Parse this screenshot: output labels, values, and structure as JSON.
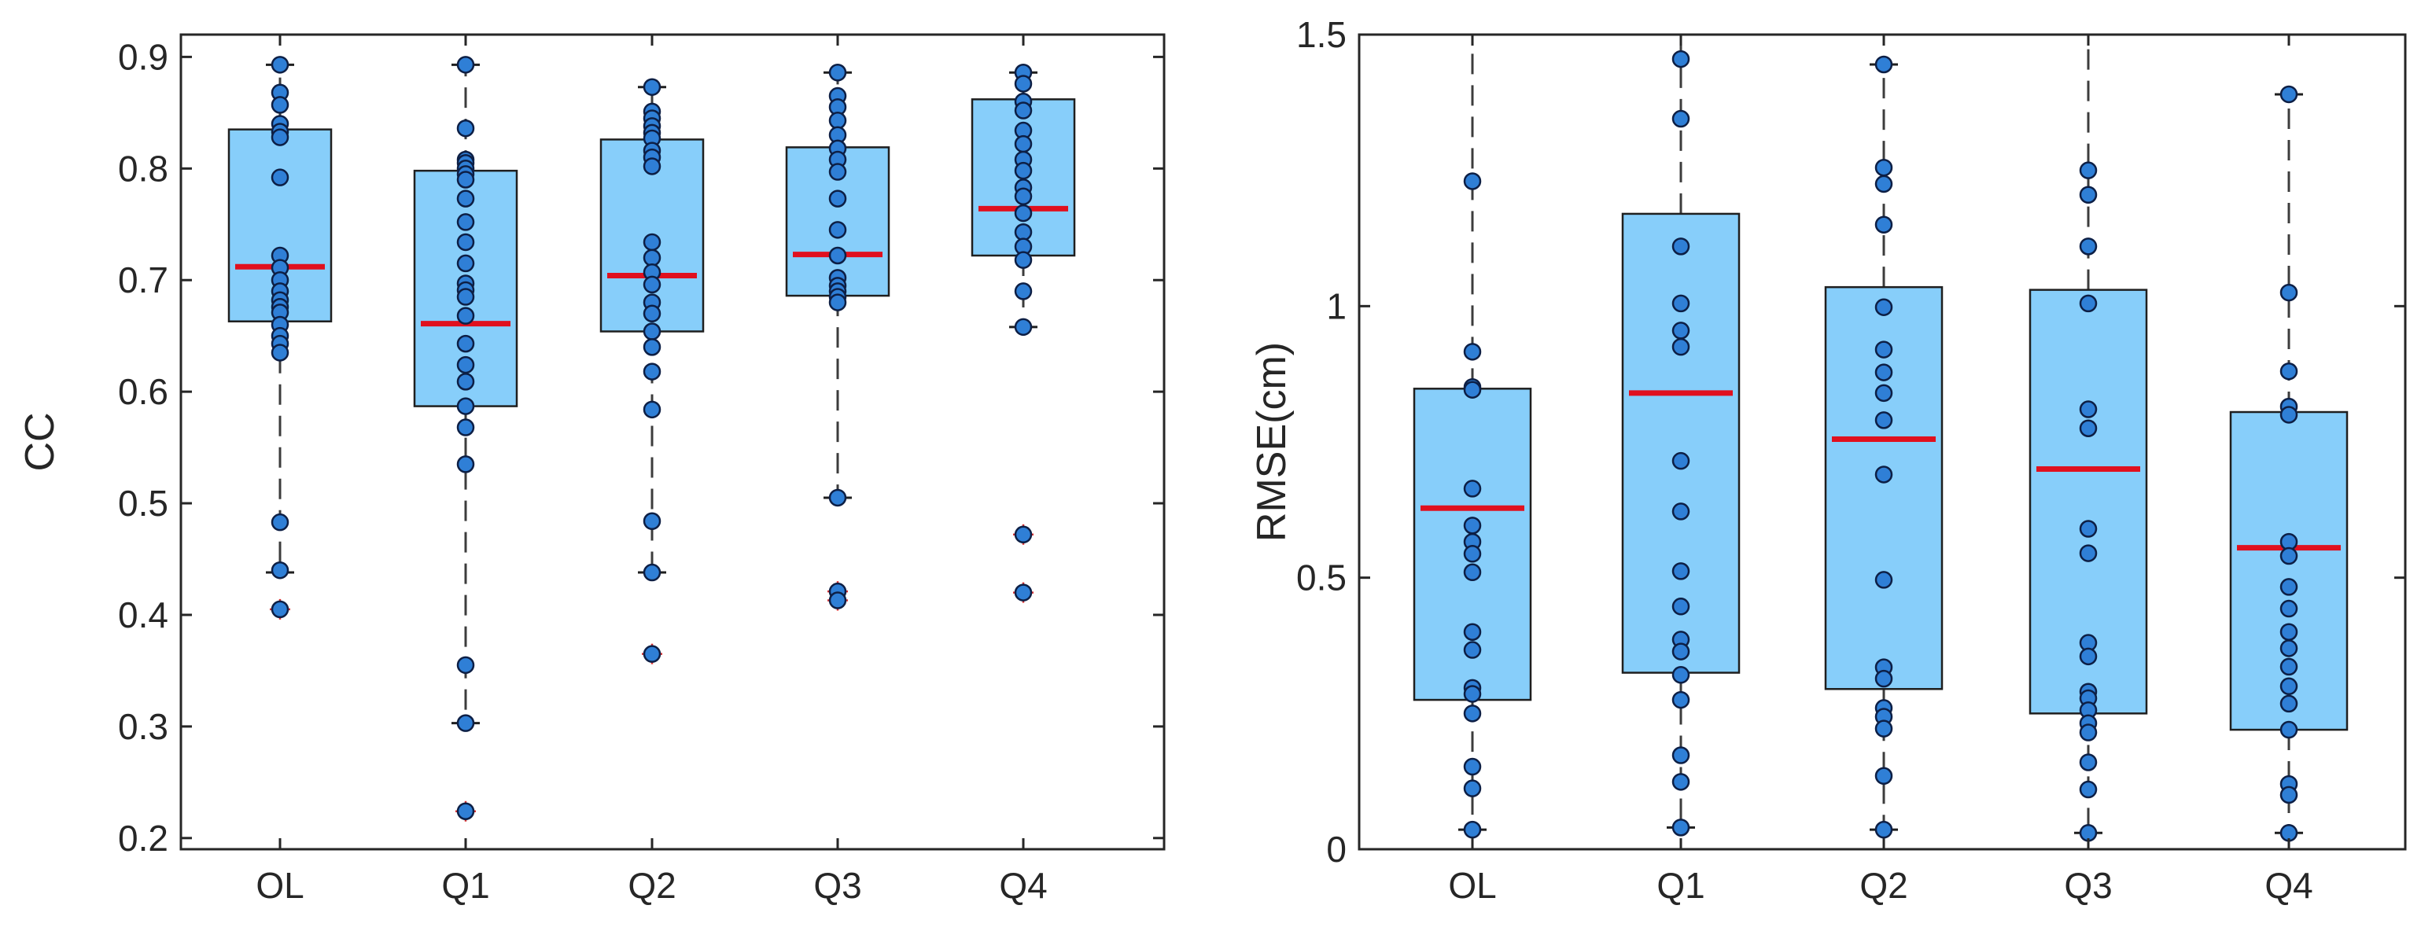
{
  "chart_data": [
    {
      "type": "box",
      "id": "cc",
      "ylabel": "CC",
      "xlabel": "",
      "ylim": [
        0.19,
        0.92
      ],
      "yticks": [
        0.2,
        0.3,
        0.4,
        0.5,
        0.6,
        0.7,
        0.8,
        0.9
      ],
      "ytick_labels": [
        "0.2",
        "0.3",
        "0.4",
        "0.5",
        "0.6",
        "0.7",
        "0.8",
        "0.9"
      ],
      "categories": [
        "OL",
        "Q1",
        "Q2",
        "Q3",
        "Q4"
      ],
      "boxes": [
        {
          "q1": 0.663,
          "median": 0.712,
          "q3": 0.835,
          "whisker_low": 0.438,
          "whisker_high": 0.893,
          "outliers": [
            0.405
          ],
          "points": [
            0.893,
            0.868,
            0.857,
            0.84,
            0.833,
            0.828,
            0.792,
            0.722,
            0.711,
            0.7,
            0.69,
            0.682,
            0.676,
            0.671,
            0.66,
            0.65,
            0.643,
            0.635,
            0.483,
            0.44,
            0.405
          ]
        },
        {
          "q1": 0.587,
          "median": 0.661,
          "q3": 0.798,
          "whisker_low": 0.303,
          "whisker_high": 0.893,
          "outliers": [
            0.224
          ],
          "points": [
            0.893,
            0.836,
            0.808,
            0.805,
            0.8,
            0.795,
            0.79,
            0.773,
            0.752,
            0.734,
            0.715,
            0.697,
            0.691,
            0.685,
            0.668,
            0.643,
            0.624,
            0.609,
            0.587,
            0.568,
            0.535,
            0.355,
            0.303,
            0.224
          ]
        },
        {
          "q1": 0.654,
          "median": 0.704,
          "q3": 0.826,
          "whisker_low": 0.438,
          "whisker_high": 0.873,
          "outliers": [
            0.365
          ],
          "points": [
            0.873,
            0.851,
            0.845,
            0.838,
            0.832,
            0.827,
            0.816,
            0.81,
            0.802,
            0.734,
            0.72,
            0.707,
            0.696,
            0.68,
            0.67,
            0.654,
            0.64,
            0.618,
            0.584,
            0.484,
            0.438,
            0.365
          ]
        },
        {
          "q1": 0.686,
          "median": 0.723,
          "q3": 0.819,
          "whisker_low": 0.505,
          "whisker_high": 0.886,
          "outliers": [
            0.421,
            0.413
          ],
          "points": [
            0.886,
            0.865,
            0.855,
            0.843,
            0.83,
            0.818,
            0.808,
            0.797,
            0.773,
            0.745,
            0.722,
            0.702,
            0.695,
            0.69,
            0.685,
            0.68,
            0.505,
            0.421,
            0.413
          ]
        },
        {
          "q1": 0.722,
          "median": 0.764,
          "q3": 0.862,
          "whisker_low": 0.658,
          "whisker_high": 0.886,
          "outliers": [
            0.472,
            0.42
          ],
          "points": [
            0.886,
            0.876,
            0.86,
            0.852,
            0.834,
            0.822,
            0.808,
            0.798,
            0.783,
            0.775,
            0.76,
            0.743,
            0.73,
            0.718,
            0.69,
            0.658,
            0.472,
            0.42
          ]
        }
      ]
    },
    {
      "type": "box",
      "id": "rmse",
      "ylabel": "RMSE(cm)",
      "xlabel": "",
      "ylim": [
        0,
        1.5
      ],
      "yticks": [
        0,
        0.5,
        1,
        1.5
      ],
      "ytick_labels": [
        "0",
        "0.5",
        "1",
        "1.5"
      ],
      "categories": [
        "OL",
        "Q1",
        "Q2",
        "Q3",
        "Q4"
      ],
      "boxes": [
        {
          "q1": 0.275,
          "median": 0.628,
          "q3": 0.848,
          "whisker_low": 0.036,
          "whisker_high": 1.5,
          "outliers": [],
          "points": [
            1.23,
            0.916,
            0.851,
            0.846,
            0.664,
            0.596,
            0.566,
            0.544,
            0.51,
            0.4,
            0.367,
            0.297,
            0.286,
            0.25,
            0.152,
            0.112,
            0.036
          ]
        },
        {
          "q1": 0.325,
          "median": 0.84,
          "q3": 1.17,
          "whisker_low": 0.04,
          "whisker_high": 1.5,
          "outliers": [],
          "points": [
            1.455,
            1.345,
            1.11,
            1.005,
            0.955,
            0.925,
            0.715,
            0.622,
            0.512,
            0.447,
            0.386,
            0.364,
            0.321,
            0.275,
            0.173,
            0.124,
            0.04
          ]
        },
        {
          "q1": 0.295,
          "median": 0.755,
          "q3": 1.035,
          "whisker_low": 0.036,
          "whisker_high": 1.445,
          "outliers": [],
          "points": [
            1.445,
            1.255,
            1.225,
            1.15,
            0.998,
            0.92,
            0.878,
            0.84,
            0.79,
            0.69,
            0.496,
            0.335,
            0.314,
            0.26,
            0.244,
            0.222,
            0.135,
            0.036
          ]
        },
        {
          "q1": 0.25,
          "median": 0.7,
          "q3": 1.03,
          "whisker_low": 0.03,
          "whisker_high": 1.5,
          "outliers": [],
          "points": [
            1.25,
            1.205,
            1.11,
            1.005,
            0.81,
            0.775,
            0.59,
            0.545,
            0.38,
            0.355,
            0.29,
            0.278,
            0.256,
            0.232,
            0.215,
            0.16,
            0.11,
            0.03
          ]
        },
        {
          "q1": 0.22,
          "median": 0.555,
          "q3": 0.805,
          "whisker_low": 0.03,
          "whisker_high": 1.39,
          "outliers": [],
          "points": [
            1.39,
            1.025,
            0.88,
            0.815,
            0.8,
            0.566,
            0.54,
            0.483,
            0.443,
            0.4,
            0.37,
            0.336,
            0.3,
            0.268,
            0.22,
            0.12,
            0.1,
            0.03
          ]
        }
      ]
    }
  ],
  "style": {
    "box_fill": "#87cefa",
    "box_edge": "#1f1f1f",
    "median_color": "#e0101e",
    "point_fill": "#2f7fd6",
    "point_edge": "#0d1f45",
    "whisker_color": "#3c3c3c",
    "outlier_color": "#d93030",
    "axis_color": "#262626"
  }
}
